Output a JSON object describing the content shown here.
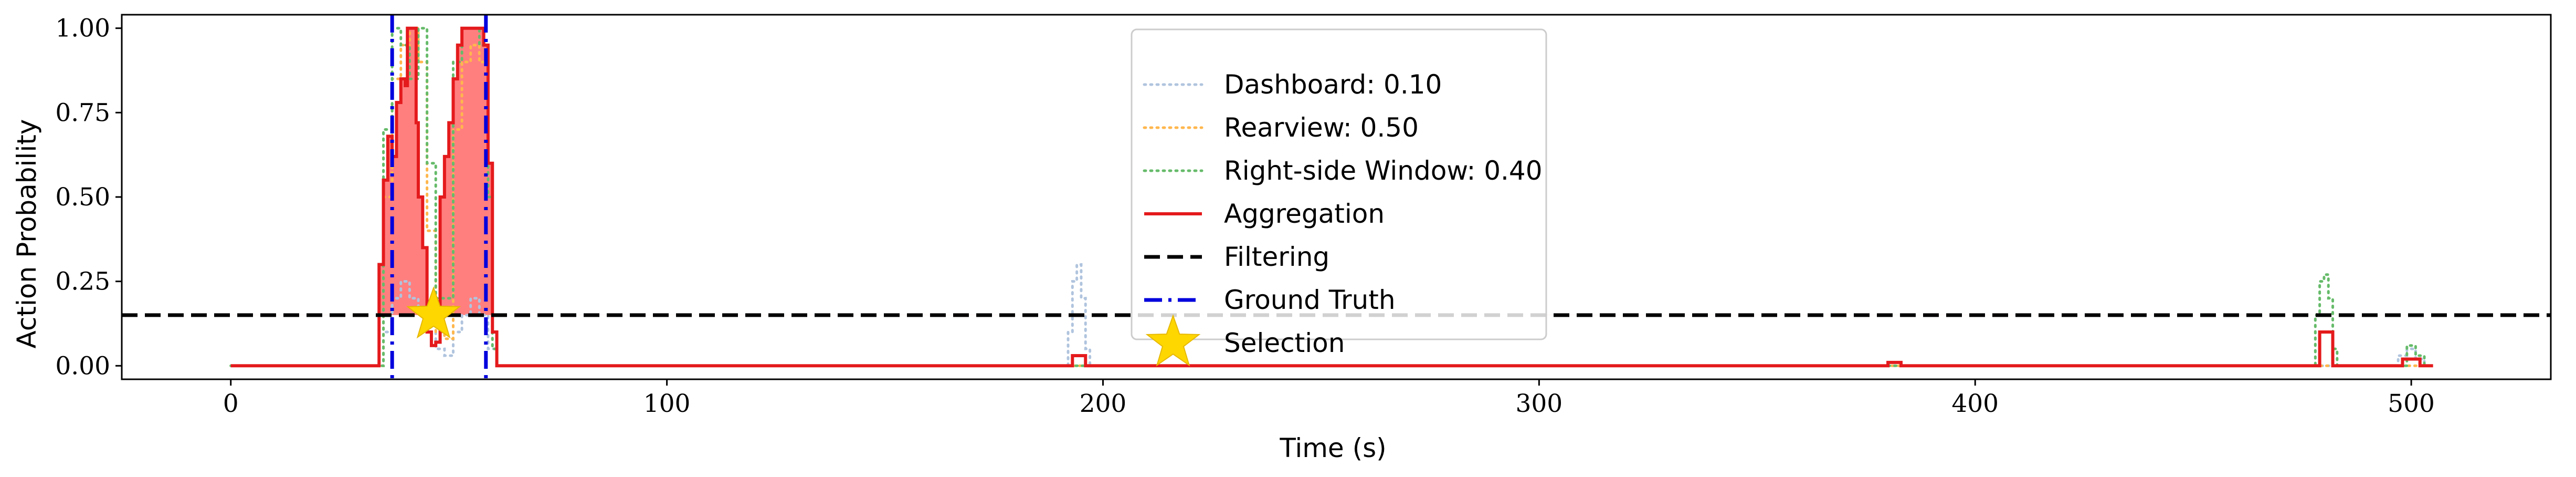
{
  "chart_data": {
    "type": "line",
    "title": "",
    "xlabel": "Time (s)",
    "ylabel": "Action Probability",
    "xlim": [
      -25,
      532
    ],
    "ylim": [
      -0.04,
      1.04
    ],
    "xticks": [
      0,
      100,
      200,
      300,
      400,
      500
    ],
    "xtick_labels": [
      "0",
      "100",
      "200",
      "300",
      "400",
      "500"
    ],
    "yticks": [
      0.0,
      0.25,
      0.5,
      0.75,
      1.0
    ],
    "ytick_labels": [
      "0.00",
      "0.25",
      "0.50",
      "0.75",
      "1.00"
    ],
    "grid": false,
    "legend_position": "top-center",
    "series": [
      {
        "name": "Dashboard: 0.10",
        "style": "dotted",
        "color": "#b0c4de",
        "points": [
          [
            0,
            0
          ],
          [
            33,
            0
          ],
          [
            35,
            0.1
          ],
          [
            37,
            0.2
          ],
          [
            39,
            0.25
          ],
          [
            41,
            0.2
          ],
          [
            43,
            0.15
          ],
          [
            45,
            0.1
          ],
          [
            47,
            0.05
          ],
          [
            49,
            0.03
          ],
          [
            51,
            0.1
          ],
          [
            53,
            0.15
          ],
          [
            55,
            0.2
          ],
          [
            57,
            0.15
          ],
          [
            59,
            0.05
          ],
          [
            61,
            0
          ],
          [
            190,
            0
          ],
          [
            192,
            0.1
          ],
          [
            193,
            0.25
          ],
          [
            194,
            0.3
          ],
          [
            195,
            0.2
          ],
          [
            196,
            0.05
          ],
          [
            197,
            0
          ],
          [
            495,
            0
          ],
          [
            497,
            0.03
          ],
          [
            499,
            0.05
          ],
          [
            501,
            0.02
          ],
          [
            503,
            0
          ]
        ]
      },
      {
        "name": "Rearview: 0.50",
        "style": "dotted",
        "color": "#ffb74d",
        "points": [
          [
            0,
            0
          ],
          [
            33,
            0
          ],
          [
            35,
            0.5
          ],
          [
            37,
            0.85
          ],
          [
            39,
            0.95
          ],
          [
            41,
            1.0
          ],
          [
            43,
            0.9
          ],
          [
            45,
            0.4
          ],
          [
            47,
            0.1
          ],
          [
            49,
            0.08
          ],
          [
            51,
            0.7
          ],
          [
            53,
            0.9
          ],
          [
            55,
            0.95
          ],
          [
            57,
            0.9
          ],
          [
            59,
            0.6
          ],
          [
            60,
            0.1
          ],
          [
            61,
            0
          ],
          [
            505,
            0
          ]
        ]
      },
      {
        "name": "Right-side Window: 0.40",
        "style": "dotted",
        "color": "#66bb6a",
        "points": [
          [
            0,
            0
          ],
          [
            33,
            0
          ],
          [
            35,
            0.7
          ],
          [
            37,
            1.0
          ],
          [
            39,
            0.95
          ],
          [
            41,
            0.85
          ],
          [
            43,
            1.0
          ],
          [
            45,
            0.6
          ],
          [
            47,
            0.2
          ],
          [
            49,
            0.2
          ],
          [
            51,
            0.9
          ],
          [
            53,
            1.0
          ],
          [
            55,
            1.0
          ],
          [
            57,
            0.95
          ],
          [
            59,
            0.5
          ],
          [
            60,
            0.05
          ],
          [
            61,
            0
          ],
          [
            477,
            0
          ],
          [
            478,
            0.15
          ],
          [
            479,
            0.25
          ],
          [
            480,
            0.27
          ],
          [
            481,
            0.2
          ],
          [
            482,
            0.05
          ],
          [
            483,
            0
          ],
          [
            497,
            0
          ],
          [
            499,
            0.06
          ],
          [
            501,
            0.03
          ],
          [
            503,
            0
          ]
        ]
      },
      {
        "name": "Aggregation",
        "style": "solid",
        "color": "#e41a1c",
        "points": [
          [
            0,
            0
          ],
          [
            33,
            0
          ],
          [
            34,
            0.3
          ],
          [
            35,
            0.55
          ],
          [
            36,
            0.68
          ],
          [
            37,
            0.62
          ],
          [
            38,
            0.78
          ],
          [
            39,
            0.85
          ],
          [
            40,
            0.83
          ],
          [
            40.5,
            1.0
          ],
          [
            42,
            1.0
          ],
          [
            42.5,
            0.72
          ],
          [
            43,
            0.5
          ],
          [
            44,
            0.35
          ],
          [
            45,
            0.1
          ],
          [
            46,
            0.06
          ],
          [
            47,
            0.07
          ],
          [
            48,
            0.5
          ],
          [
            49,
            0.62
          ],
          [
            50,
            0.72
          ],
          [
            51,
            0.85
          ],
          [
            52,
            0.95
          ],
          [
            53,
            1.0
          ],
          [
            57,
            1.0
          ],
          [
            58,
            0.95
          ],
          [
            59,
            0.6
          ],
          [
            60,
            0.1
          ],
          [
            61,
            0
          ],
          [
            192,
            0
          ],
          [
            193,
            0.03
          ],
          [
            195,
            0.03
          ],
          [
            196,
            0
          ],
          [
            379,
            0
          ],
          [
            380,
            0.01
          ],
          [
            382,
            0.01
          ],
          [
            383,
            0
          ],
          [
            478,
            0
          ],
          [
            479,
            0.1
          ],
          [
            481,
            0.1
          ],
          [
            482,
            0
          ],
          [
            497,
            0
          ],
          [
            498,
            0.02
          ],
          [
            500,
            0.02
          ],
          [
            502,
            0
          ],
          [
            505,
            0
          ]
        ]
      }
    ],
    "filtering": {
      "name": "Filtering",
      "threshold": 0.15,
      "color": "#000000"
    },
    "ground_truth": {
      "name": "Ground Truth",
      "x": [
        37,
        58.5
      ],
      "color": "#0000dd"
    },
    "selection": {
      "name": "Selection",
      "x": 46.5,
      "y": 0.15,
      "color": "#ffd700"
    },
    "fill_color": "#ff7f7f"
  }
}
